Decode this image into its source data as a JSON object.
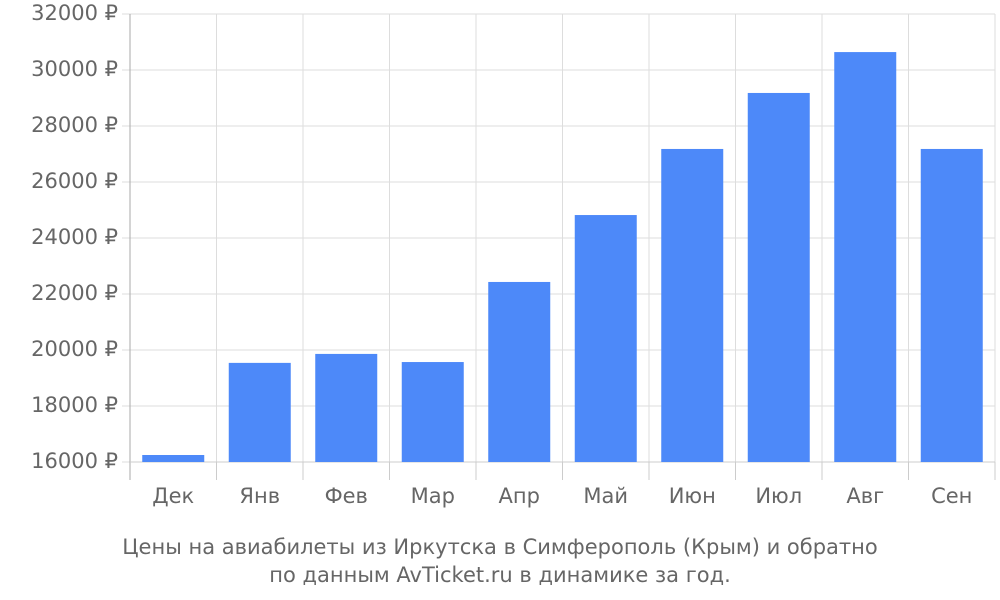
{
  "chart_data": {
    "type": "bar",
    "title": [
      "Цены на авиабилеты из Иркутска в Симферополь (Крым) и обратно",
      "по данным AvTicket.ru в динамике за год."
    ],
    "categories": [
      "Дек",
      "Янв",
      "Фев",
      "Мар",
      "Апр",
      "Май",
      "Июн",
      "Июл",
      "Авг",
      "Сен"
    ],
    "values": [
      16250,
      19540,
      19860,
      19570,
      22430,
      24820,
      27180,
      29180,
      30640,
      27180
    ],
    "color": "#4d89f9",
    "ylim": [
      16000,
      32000
    ],
    "yticks": [
      {
        "value": 16000,
        "label": "16000 ₽"
      },
      {
        "value": 18000,
        "label": "18000 ₽"
      },
      {
        "value": 20000,
        "label": "20000 ₽"
      },
      {
        "value": 22000,
        "label": "22000 ₽"
      },
      {
        "value": 24000,
        "label": "24000 ₽"
      },
      {
        "value": 26000,
        "label": "26000 ₽"
      },
      {
        "value": 28000,
        "label": "28000 ₽"
      },
      {
        "value": 30000,
        "label": "30000 ₽"
      },
      {
        "value": 32000,
        "label": "32000 ₽"
      }
    ],
    "grid": true
  }
}
